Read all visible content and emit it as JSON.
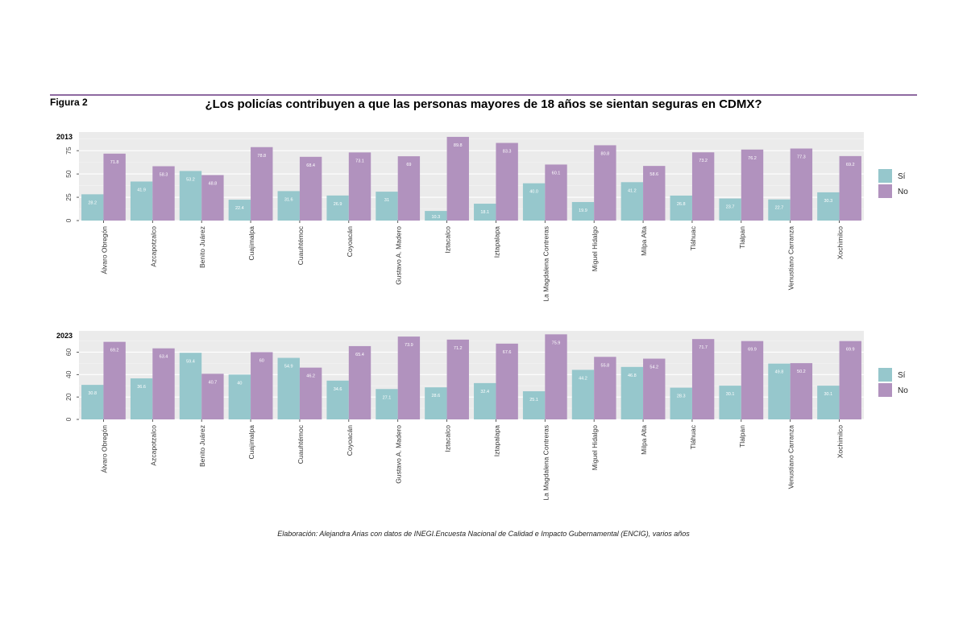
{
  "figure_label": "Figura 2",
  "title": "¿Los policías contribuyen a que las personas mayores de 18 años se sientan seguras en CDMX?",
  "caption": "Elaboración: Alejandra Arias con datos de INEGI.Encuesta Nacional de Calidad e Impacto Gubernamental (ENCIG), varios años",
  "colors": {
    "si": "#96c7cc",
    "no": "#b192be",
    "panel": "#ebebeb",
    "grid": "#ffffff"
  },
  "chart_data": [
    {
      "type": "bar",
      "panel_label": "2013",
      "categories": [
        "Álvaro Obregón",
        "Azcapotzalco",
        "Benito Juárez",
        "Cuajimalpa",
        "Cuauhtémoc",
        "Coyoacán",
        "Gustavo A. Madero",
        "Iztacalco",
        "Iztapalapa",
        "La Magdalena Contreras",
        "Miguel Hidalgo",
        "Milpa Alta",
        "Tláhuac",
        "Tlalpan",
        "Venustiano Carranza",
        "Xochimilco"
      ],
      "series": [
        {
          "name": "Sí",
          "values": [
            28.2,
            41.9,
            53.2,
            22.4,
            31.6,
            26.9,
            31,
            10.3,
            18.1,
            40.0,
            19.9,
            41.2,
            26.8,
            23.7,
            22.7,
            30.3
          ],
          "labels": [
            "28.2",
            "41.9",
            "53.2",
            "22.4",
            "31.6",
            "26.9",
            "31",
            "10.3",
            "18.1",
            "40.0",
            "19.9",
            "41.2",
            "26.8",
            "23.7",
            "22.7",
            "30.3"
          ]
        },
        {
          "name": "No",
          "values": [
            71.8,
            58.3,
            48.8,
            78.8,
            68.4,
            73.1,
            69,
            89.8,
            83.3,
            60.1,
            80.8,
            58.6,
            73.2,
            76.2,
            77.3,
            69.2
          ],
          "labels": [
            "71.8",
            "58.3",
            "48.8",
            "78.8",
            "68.4",
            "73.1",
            "69",
            "89.8",
            "83.3",
            "60.1",
            "80.8",
            "58.6",
            "73.2",
            "76.2",
            "77.3",
            "69.2"
          ]
        }
      ],
      "yticks": [
        "0",
        "25",
        "50",
        "75"
      ],
      "ylim": [
        0,
        95
      ],
      "legend_position": "right"
    },
    {
      "type": "bar",
      "panel_label": "2023",
      "categories": [
        "Álvaro Obregón",
        "Azcapotzalco",
        "Benito Juárez",
        "Cuajimalpa",
        "Cuauhtémoc",
        "Coyoacán",
        "Gustavo A. Madero",
        "Iztacalco",
        "Iztapalapa",
        "La Magdalena Contreras",
        "Miguel Hidalgo",
        "Milpa Alta",
        "Tláhuac",
        "Tlalpan",
        "Venustiano Carranza",
        "Xochimilco"
      ],
      "series": [
        {
          "name": "Sí",
          "values": [
            30.8,
            36.6,
            59.4,
            40,
            54.9,
            34.6,
            27.1,
            28.6,
            32.4,
            25.1,
            44.2,
            46.8,
            28.3,
            30.1,
            49.8,
            30.1
          ],
          "labels": [
            "30.8",
            "36.6",
            "59.4",
            "40",
            "54.9",
            "34.6",
            "27.1",
            "28.6",
            "32.4",
            "25.1",
            "44.2",
            "46.8",
            "28.3",
            "30.1",
            "49.8",
            "30.1"
          ]
        },
        {
          "name": "No",
          "values": [
            69.2,
            63.4,
            40.7,
            60,
            46.2,
            65.4,
            73.9,
            71.2,
            67.6,
            75.9,
            55.8,
            54.2,
            71.7,
            69.9,
            50.2,
            69.9
          ],
          "labels": [
            "69.2",
            "63.4",
            "40.7",
            "60",
            "46.2",
            "65.4",
            "73.9",
            "71.2",
            "67.6",
            "75.9",
            "55.8",
            "54.2",
            "71.7",
            "69.9",
            "50.2",
            "69.9"
          ]
        }
      ],
      "yticks": [
        "0",
        "20",
        "40",
        "60"
      ],
      "ylim": [
        0,
        79
      ],
      "legend_position": "right"
    }
  ]
}
